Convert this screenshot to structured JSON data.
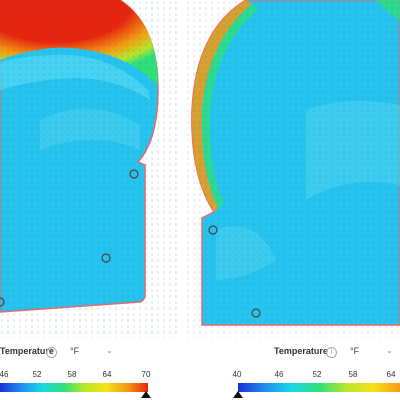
{
  "left_panel": {
    "legend": {
      "title": "Temperature",
      "info_icon": "info-icon",
      "unit": "°F",
      "chevron_icon": "chevron-down-icon",
      "ticks": [
        "46",
        "52",
        "58",
        "64",
        "70"
      ],
      "bar_colors": [
        "#1a2fd6",
        "#1e8ef0",
        "#19d9e8",
        "#2fe07a",
        "#b7e62a",
        "#f6e21b",
        "#f59b12",
        "#e8250e"
      ],
      "caret_icon": "slider-caret-icon"
    }
  },
  "right_panel": {
    "legend": {
      "title": "Temperature",
      "info_icon": "info-icon",
      "unit": "°F",
      "chevron_icon": "chevron-down-icon",
      "ticks": [
        "40",
        "46",
        "52",
        "58",
        "64"
      ],
      "bar_colors": [
        "#1a2fd6",
        "#1e8ef0",
        "#19d9e8",
        "#2fe07a",
        "#b7e62a",
        "#f6e21b",
        "#f59b12"
      ],
      "caret_icon": "slider-caret-icon"
    }
  },
  "colors": {
    "fluid_main": "#27c3ef",
    "fluid_light": "#4fd6f2",
    "hot": "#e8250e",
    "warm": "#f59b12",
    "outline": "#e86a6a",
    "probe": "#444444"
  }
}
